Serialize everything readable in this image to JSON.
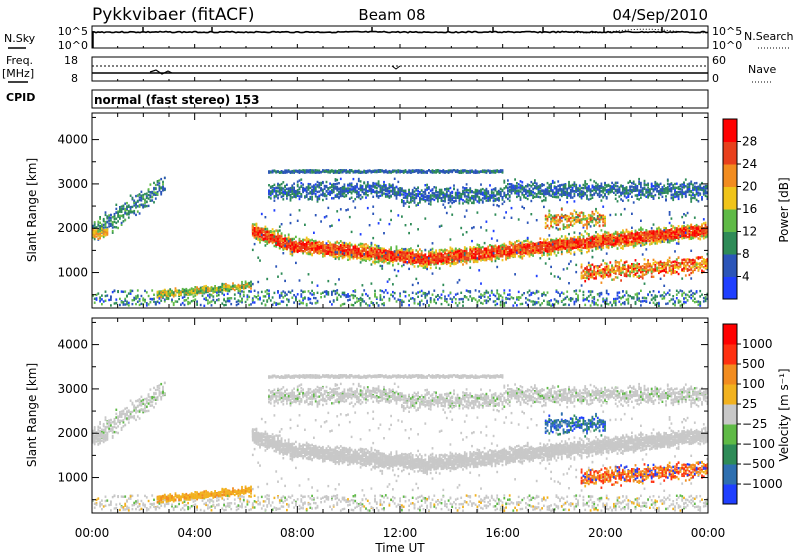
{
  "header": {
    "station": "Pykkvibaer (fitACF)",
    "beam": "Beam 08",
    "date": "04/Sep/2010"
  },
  "left_labels": {
    "nsky": "N.Sky",
    "freq": "Freq.",
    "mhz": "[MHz]",
    "cpid": "CPID"
  },
  "right_labels": {
    "nsearch": "N.Search",
    "nave": "Nave"
  },
  "cpid_text": "normal (fast stereo) 153",
  "chart_data": [
    {
      "type": "line",
      "name": "noise",
      "ytick_labels": [
        "10^5",
        "10^0"
      ],
      "ytick_labels_right": [
        "10^5",
        "10^0"
      ]
    },
    {
      "type": "line",
      "name": "frequency-nave",
      "yticks_left": [
        18,
        8
      ],
      "yticks_right": [
        60,
        0
      ],
      "freq_MHz": 10.5,
      "nave_level": 33
    },
    {
      "type": "heatmap",
      "name": "power",
      "ylabel": "Slant Range [km]",
      "ylim": [
        200,
        4600
      ],
      "yticks": [
        1000,
        2000,
        3000,
        4000
      ],
      "colorbar": {
        "label": "Power [dB]",
        "ticks": [
          4,
          8,
          12,
          16,
          20,
          24,
          28
        ],
        "range": [
          0,
          32
        ],
        "colors": [
          "#1f3fff",
          "#2b55b8",
          "#2e8b57",
          "#5fba46",
          "#f0c419",
          "#f28c1f",
          "#e8401c",
          "#ff0000"
        ]
      }
    },
    {
      "type": "heatmap",
      "name": "velocity",
      "ylabel": "Slant Range [km]",
      "ylim": [
        200,
        4600
      ],
      "yticks": [
        1000,
        2000,
        3000,
        4000
      ],
      "colorbar": {
        "label": "Velocity [m s⁻¹]",
        "ticks": [
          "1000",
          "500",
          "100",
          "25",
          "−25",
          "−100",
          "−500",
          "−1000"
        ],
        "colors": [
          "#1f3fff",
          "#2e6fb0",
          "#2e8b57",
          "#5fba46",
          "#c8c8c8",
          "#f2b21f",
          "#f28c1f",
          "#ff3010",
          "#ff0000"
        ]
      }
    }
  ],
  "xaxis": {
    "label": "Time UT",
    "ticks": [
      "00:00",
      "04:00",
      "08:00",
      "12:00",
      "16:00",
      "20:00",
      "00:00"
    ],
    "range_hours": [
      0,
      24
    ]
  }
}
